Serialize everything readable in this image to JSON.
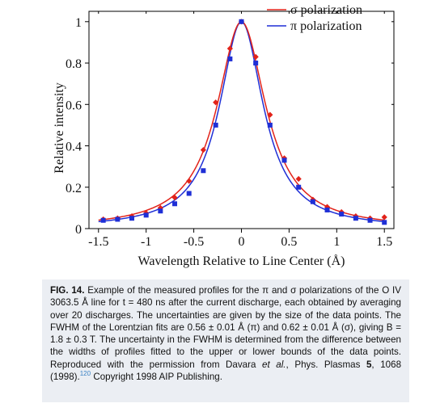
{
  "chart_data": {
    "type": "line",
    "xlabel": "Wavelength Relative to Line Center (Å)",
    "ylabel": "Relative intensity",
    "xlim": [
      -1.6,
      1.6
    ],
    "ylim": [
      0,
      1.05
    ],
    "x_ticks": [
      -1.5,
      -1,
      -0.5,
      0,
      0.5,
      1,
      1.5
    ],
    "x_tick_labels": [
      "-1.5",
      "-1",
      "-0.5",
      "0",
      "0.5",
      "1",
      "1.5"
    ],
    "y_ticks": [
      0,
      0.2,
      0.4,
      0.6,
      0.8,
      1
    ],
    "y_tick_labels": [
      "0",
      "0.2",
      "0.4",
      "0.6",
      "0.8",
      "1"
    ],
    "grid": false,
    "legend_position": "top-right",
    "series": [
      {
        "name": "σ polarization",
        "color": "#e2231a",
        "marker": "diamond",
        "fit": {
          "model": "lorentzian",
          "center": 0,
          "fwhm": 0.62,
          "peak": 1.0
        },
        "points": {
          "x": [
            -1.45,
            -1.3,
            -1.15,
            -1.0,
            -0.85,
            -0.7,
            -0.55,
            -0.4,
            -0.27,
            -0.12,
            0.0,
            0.15,
            0.3,
            0.45,
            0.6,
            0.75,
            0.9,
            1.05,
            1.2,
            1.35,
            1.5
          ],
          "y": [
            0.045,
            0.05,
            0.06,
            0.075,
            0.1,
            0.15,
            0.23,
            0.38,
            0.61,
            0.87,
            1.0,
            0.83,
            0.55,
            0.34,
            0.24,
            0.14,
            0.105,
            0.08,
            0.06,
            0.05,
            0.055
          ]
        }
      },
      {
        "name": "π polarization",
        "color": "#1f2fd6",
        "marker": "square",
        "fit": {
          "model": "lorentzian",
          "center": 0,
          "fwhm": 0.56,
          "peak": 1.0
        },
        "points": {
          "x": [
            -1.45,
            -1.3,
            -1.15,
            -1.0,
            -0.85,
            -0.7,
            -0.55,
            -0.4,
            -0.27,
            -0.12,
            0.0,
            0.15,
            0.3,
            0.45,
            0.6,
            0.75,
            0.9,
            1.05,
            1.2,
            1.35,
            1.5
          ],
          "y": [
            0.04,
            0.045,
            0.05,
            0.065,
            0.085,
            0.12,
            0.17,
            0.28,
            0.5,
            0.82,
            1.0,
            0.8,
            0.5,
            0.33,
            0.2,
            0.13,
            0.09,
            0.07,
            0.05,
            0.04,
            0.03
          ]
        }
      }
    ]
  },
  "caption": {
    "label": "FIG. 14.",
    "text_1": " Example of the measured profiles for the π and σ polarizations of the O IV 3063.5 Å line for t = 480 ns after the current discharge, each obtained by averaging over 20 discharges. The uncertainties are given by the size of the data points. The FWHM of the Lorentzian fits are 0.56 ± 0.01 Å (π) and 0.62 ± 0.01 Å (σ), giving B = 1.8 ± 0.3 T. The uncertainty in the FWHM is determined from the difference between the widths of profiles fitted to the upper or lower bounds of the data points. Reproduced with the permission from Davara ",
    "et_al": "et al.",
    "text_2": ", Phys. Plasmas ",
    "volume": "5",
    "text_3": ", 1068 (1998).",
    "ref_number": "120",
    "text_4": " Copyright 1998 AIP Publishing."
  }
}
